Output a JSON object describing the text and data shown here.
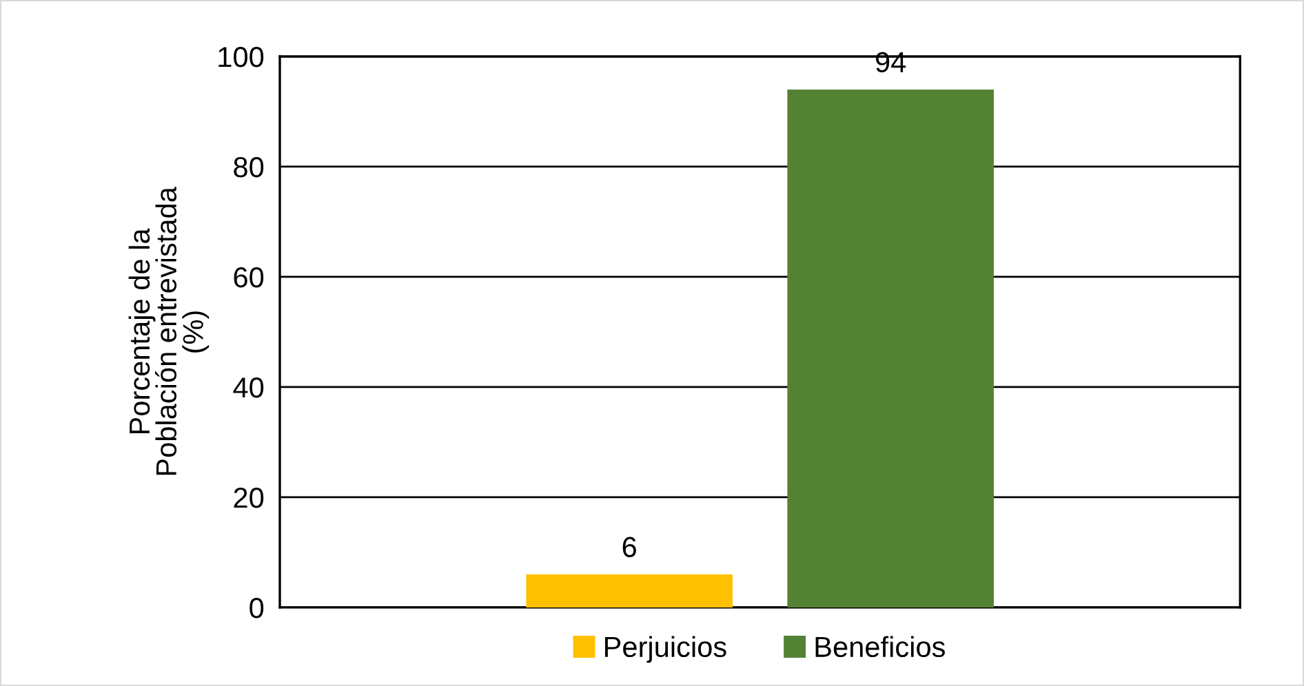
{
  "chart_data": {
    "type": "bar",
    "ylabel": "Porcentaje de la\nPoblación entrevistada\n(%)",
    "categories": [
      null
    ],
    "series": [
      {
        "name": "Perjuicios",
        "color": "#ffc000",
        "values": [
          6
        ]
      },
      {
        "name": "Beneficios",
        "color": "#548235",
        "values": [
          94
        ]
      }
    ],
    "ylim": [
      0,
      100
    ],
    "yticks": [
      0,
      20,
      40,
      60,
      80,
      100
    ],
    "grid": "y",
    "legend": "bottom",
    "data_labels": true
  }
}
